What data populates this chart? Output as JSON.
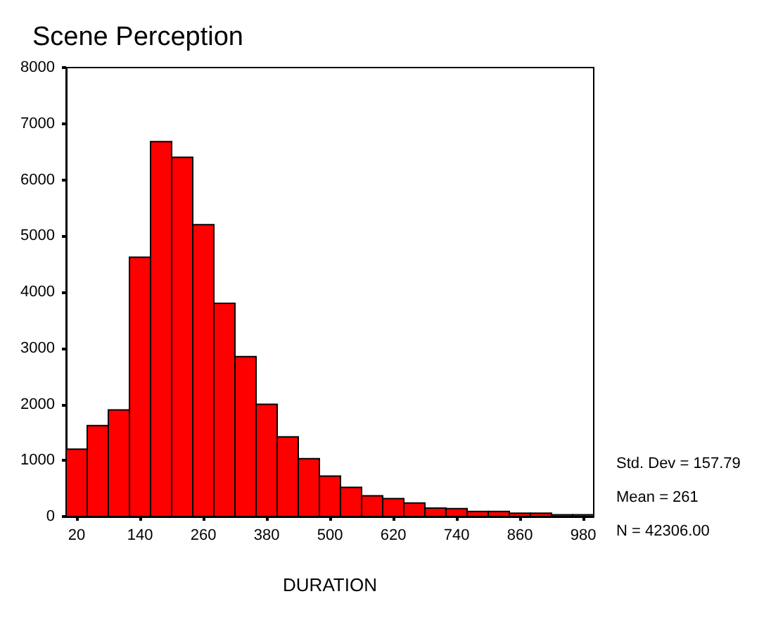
{
  "chart_data": {
    "type": "histogram",
    "title": "Scene Perception",
    "xlabel": "DURATION",
    "bins": [
      0,
      40,
      80,
      120,
      160,
      200,
      240,
      280,
      320,
      360,
      400,
      440,
      480,
      520,
      560,
      600,
      640,
      680,
      720,
      760,
      800,
      840,
      880,
      920,
      960,
      1000
    ],
    "values": [
      1200,
      1620,
      1900,
      4620,
      6680,
      6400,
      5200,
      3800,
      2850,
      2000,
      1420,
      1030,
      720,
      520,
      370,
      320,
      240,
      150,
      140,
      90,
      90,
      60,
      60,
      30,
      30
    ],
    "color": "#ff0000",
    "xlim": [
      0,
      1000
    ],
    "xticks": [
      20,
      140,
      260,
      380,
      500,
      620,
      740,
      860,
      980
    ],
    "ylim": [
      0,
      8000
    ],
    "yticks": [
      0,
      1000,
      2000,
      3000,
      4000,
      5000,
      6000,
      7000,
      8000
    ],
    "grid": false,
    "annotations": [
      "Std. Dev = 157.79",
      "Mean = 261",
      "N = 42306.00"
    ]
  }
}
